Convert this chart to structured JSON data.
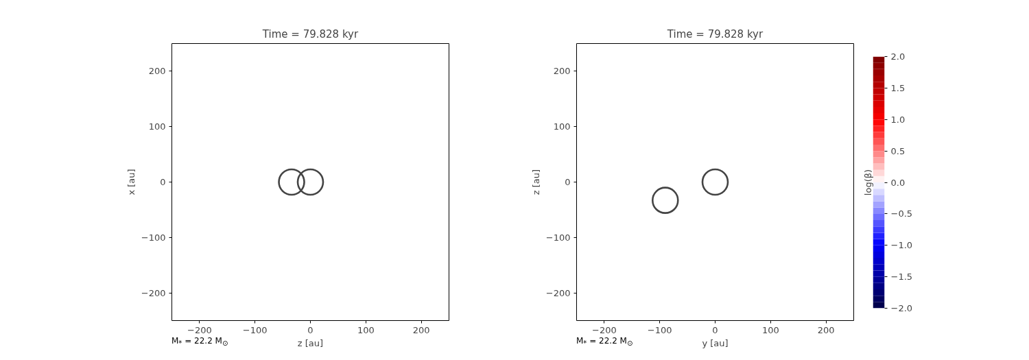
{
  "chart_data": [
    {
      "type": "scatter",
      "title": "Time = 79.828 kyr",
      "xlabel": "z [au]",
      "ylabel": "x [au]",
      "marker": "circle",
      "series": [
        {
          "x": [
            -34,
            0
          ],
          "values": [
            0,
            0
          ],
          "color": "#444444"
        }
      ],
      "xlim": [
        -250,
        250
      ],
      "ylim": [
        -250,
        250
      ],
      "xticks": [
        -200,
        -100,
        0,
        100,
        200
      ],
      "yticks": [
        -200,
        -100,
        0,
        100,
        200
      ],
      "annotations": [
        "M$_{*}$ = 22.2 M$_{⊙}$"
      ]
    },
    {
      "type": "scatter",
      "title": "Time = 79.828 kyr",
      "xlabel": "y [au]",
      "ylabel": "z [au]",
      "marker": "circle",
      "series": [
        {
          "x": [
            -90,
            0
          ],
          "values": [
            -33,
            0
          ],
          "color": "#444444"
        }
      ],
      "xlim": [
        -250,
        250
      ],
      "ylim": [
        -250,
        250
      ],
      "xticks": [
        -200,
        -100,
        0,
        100,
        200
      ],
      "yticks": [
        -200,
        -100,
        0,
        100,
        200
      ],
      "clabel": "log(β)",
      "clim": [
        -2,
        2
      ],
      "cticks": [
        {
          "value": -2,
          "label": "−2.0"
        },
        {
          "value": -1.5,
          "label": "−1.5"
        },
        {
          "value": -1,
          "label": "−1.0"
        },
        {
          "value": -0.5,
          "label": "−0.5"
        },
        {
          "value": 0,
          "label": "0.0"
        },
        {
          "value": 0.5,
          "label": "0.5"
        },
        {
          "value": 1,
          "label": "1.0"
        },
        {
          "value": 1.5,
          "label": "1.5"
        },
        {
          "value": 2,
          "label": "2.0"
        }
      ],
      "annotations": [
        "M$_{*}$ = 22.2 M$_{⊙}$"
      ]
    }
  ]
}
